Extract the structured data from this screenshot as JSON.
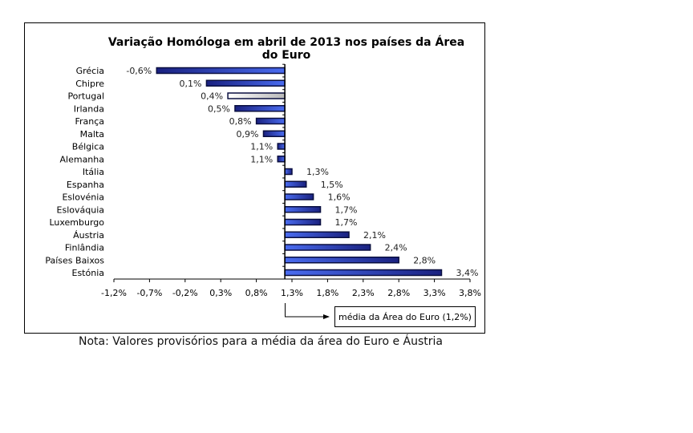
{
  "chart_data": {
    "type": "bar",
    "orientation": "horizontal",
    "title": "Variação Homóloga em abril de 2013 nos países da Área do Euro",
    "title_lines": [
      "Variação Homóloga em abril de 2013 nos países da Área",
      "do Euro"
    ],
    "categories": [
      "Grécia",
      "Chipre",
      "Portugal",
      "Irlanda",
      "França",
      "Malta",
      "Bélgica",
      "Alemanha",
      "Itália",
      "Espanha",
      "Eslovénia",
      "Eslováquia",
      "Luxemburgo",
      "Áustria",
      "Finlândia",
      "Países Baixos",
      "Estónia"
    ],
    "values": [
      -0.6,
      0.1,
      0.4,
      0.5,
      0.8,
      0.9,
      1.1,
      1.1,
      1.3,
      1.5,
      1.6,
      1.7,
      1.7,
      2.1,
      2.4,
      2.8,
      3.4
    ],
    "value_labels": [
      "-0,6%",
      "0,1%",
      "0,4%",
      "0,5%",
      "0,8%",
      "0,9%",
      "1,1%",
      "1,1%",
      "1,3%",
      "1,5%",
      "1,6%",
      "1,7%",
      "1,7%",
      "2,1%",
      "2,4%",
      "2,8%",
      "3,4%"
    ],
    "highlight": "Portugal",
    "baseline": 1.2,
    "xlim": [
      -1.2,
      3.8
    ],
    "xticks": [
      "-1,2%",
      "-0,7%",
      "-0,2%",
      "0,3%",
      "0,8%",
      "1,3%",
      "1,8%",
      "2,3%",
      "2,8%",
      "3,3%",
      "3,8%"
    ],
    "annotation": "média da Área  do Euro (1,2%)",
    "colors": {
      "bar_light": "#4a6cf0",
      "bar_dark": "#1a2180",
      "highlight_light": "#ffffff",
      "highlight_dark": "#b8b8b8"
    }
  },
  "note": "Nota: Valores provisórios para a média da área do Euro e Áustria"
}
